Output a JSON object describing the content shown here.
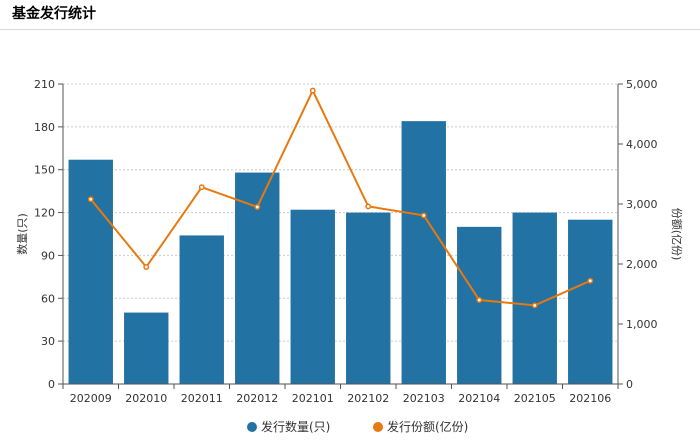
{
  "header": {
    "title": "基金发行统计"
  },
  "chart_data": {
    "type": "bar",
    "categories": [
      "202009",
      "202010",
      "202011",
      "202012",
      "202101",
      "202102",
      "202103",
      "202104",
      "202105",
      "202106"
    ],
    "series": [
      {
        "name": "发行数量(只)",
        "type": "bar",
        "axis": "left",
        "color": "#2272a3",
        "values": [
          157,
          50,
          104,
          148,
          122,
          120,
          184,
          110,
          120,
          115
        ]
      },
      {
        "name": "发行份额(亿份)",
        "type": "line",
        "axis": "right",
        "color": "#e8790e",
        "values": [
          3080,
          1950,
          3280,
          2950,
          4890,
          2960,
          2810,
          1400,
          1310,
          1720
        ]
      }
    ],
    "ylabel": "数量(只)",
    "ylabel_right": "份额(亿份)",
    "ylim": [
      0,
      210
    ],
    "ylim_right": [
      0,
      5000
    ],
    "yticks": [
      "0",
      "30",
      "60",
      "90",
      "120",
      "150",
      "180",
      "210"
    ],
    "yticks_right": [
      "0",
      "1,000",
      "2,000",
      "3,000",
      "4,000",
      "5,000"
    ],
    "grid": true,
    "legend_position": "bottom"
  }
}
